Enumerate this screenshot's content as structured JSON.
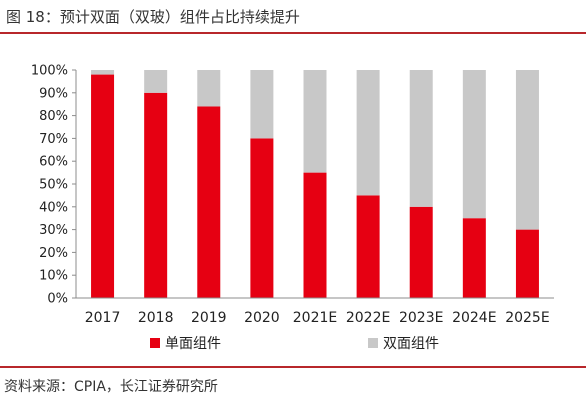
{
  "title": "图 18：预计双面（双玻）组件占比持续提升",
  "source": "资料来源：CPIA，长江证券研究所",
  "colors": {
    "single": "#e60012",
    "double": "#c8c8c8",
    "accent": "#b8272b"
  },
  "chart_data": {
    "type": "bar",
    "stacked": true,
    "categories": [
      "2017",
      "2018",
      "2019",
      "2020",
      "2021E",
      "2022E",
      "2023E",
      "2024E",
      "2025E"
    ],
    "series": [
      {
        "name": "单面组件",
        "values": [
          98,
          90,
          84,
          70,
          55,
          45,
          40,
          35,
          30
        ]
      },
      {
        "name": "双面组件",
        "values": [
          2,
          10,
          16,
          30,
          45,
          55,
          60,
          65,
          70
        ]
      }
    ],
    "ylim": [
      0,
      100
    ],
    "yticks": [
      "0%",
      "10%",
      "20%",
      "30%",
      "40%",
      "50%",
      "60%",
      "70%",
      "80%",
      "90%",
      "100%"
    ],
    "legend_position": "bottom",
    "grid": false
  }
}
